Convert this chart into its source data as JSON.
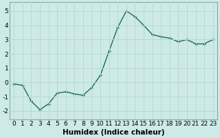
{
  "x": [
    0,
    1,
    2,
    3,
    4,
    5,
    6,
    7,
    8,
    9,
    10,
    11,
    12,
    13,
    14,
    15,
    16,
    17,
    18,
    19,
    20,
    21,
    22,
    23
  ],
  "y": [
    -0.1,
    -0.2,
    -1.3,
    -1.9,
    -1.5,
    -0.75,
    -0.65,
    -0.8,
    -0.9,
    -0.35,
    0.5,
    2.2,
    3.85,
    5.0,
    4.6,
    4.0,
    3.35,
    3.2,
    3.1,
    2.85,
    3.0,
    2.7,
    2.7,
    3.0
  ],
  "line_color": "#1a6b5a",
  "marker": "+",
  "bg_color": "#cdeae7",
  "grid_color": "#b8d8d5",
  "xlabel": "Humidex (Indice chaleur)",
  "ylim": [
    -2.6,
    5.6
  ],
  "yticks": [
    -2,
    -1,
    0,
    1,
    2,
    3,
    4,
    5
  ],
  "xlim": [
    -0.5,
    23.5
  ],
  "xticks": [
    0,
    1,
    2,
    3,
    4,
    5,
    6,
    7,
    8,
    9,
    10,
    11,
    12,
    13,
    14,
    15,
    16,
    17,
    18,
    19,
    20,
    21,
    22,
    23
  ],
  "xlabel_fontsize": 7.5,
  "tick_fontsize": 6.5,
  "linewidth": 1.0,
  "markersize": 3.5,
  "markeredgewidth": 1.0
}
